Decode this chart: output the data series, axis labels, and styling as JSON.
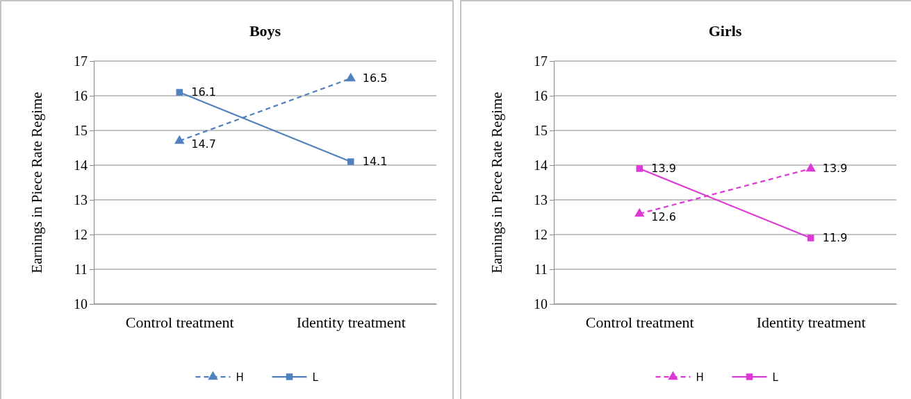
{
  "chart_data": [
    {
      "type": "line",
      "title": "Boys",
      "ylabel": "Earnings in Piece Rate Regime",
      "categories": [
        "Control treatment",
        "Identity treatment"
      ],
      "ylim": [
        10,
        17
      ],
      "yticks": [
        10,
        11,
        12,
        13,
        14,
        15,
        16,
        17
      ],
      "grid": "y",
      "legend": "bottom",
      "data_labels": true,
      "series": [
        {
          "name": "H",
          "color": "#4f81bd",
          "values": [
            14.7,
            16.5
          ],
          "marker": "triangle",
          "line_style": "dashed"
        },
        {
          "name": "L",
          "color": "#4f81bd",
          "values": [
            16.1,
            14.1
          ],
          "marker": "square",
          "line_style": "solid"
        }
      ]
    },
    {
      "type": "line",
      "title": "Girls",
      "ylabel": "Earnings in Piece Rate Regime",
      "categories": [
        "Control treatment",
        "Identity treatment"
      ],
      "ylim": [
        10,
        17
      ],
      "yticks": [
        10,
        11,
        12,
        13,
        14,
        15,
        16,
        17
      ],
      "grid": "y",
      "legend": "bottom",
      "data_labels": true,
      "series": [
        {
          "name": "H",
          "color": "#dc3ad4",
          "values": [
            12.6,
            13.9
          ],
          "marker": "triangle",
          "line_style": "dashed"
        },
        {
          "name": "L",
          "color": "#dc3ad4",
          "values": [
            13.9,
            11.9
          ],
          "marker": "square",
          "line_style": "solid"
        }
      ]
    }
  ]
}
